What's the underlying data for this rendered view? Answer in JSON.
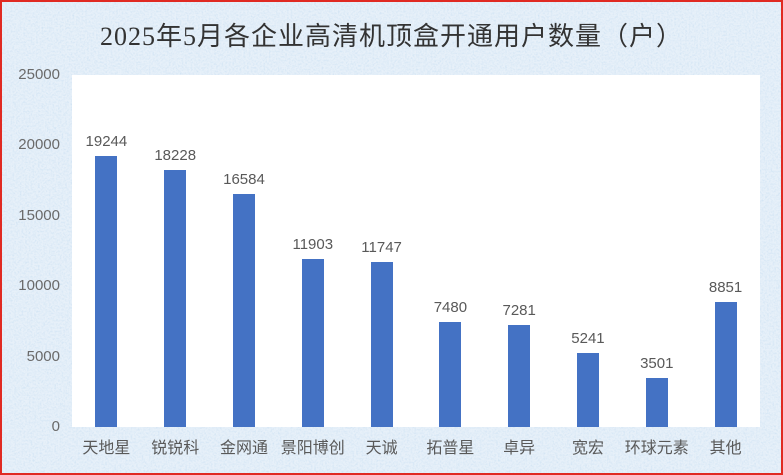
{
  "page": {
    "background_color": "#cfe2f3",
    "border_color": "#e02a22",
    "plot_background": "#ffffff"
  },
  "chart_data": {
    "type": "bar",
    "title": "2025年5月各企业高清机顶盒开通用户数量（户）",
    "categories": [
      "天地星",
      "锐锐科",
      "金网通",
      "景阳博创",
      "天诚",
      "拓普星",
      "卓异",
      "宽宏",
      "环球元素",
      "其他"
    ],
    "values": [
      19244,
      18228,
      16584,
      11903,
      11747,
      7480,
      7281,
      5241,
      3501,
      8851
    ],
    "data_labels": [
      "19244",
      "18228",
      "16584",
      "11903",
      "11747",
      "7480",
      "7281",
      "5241",
      "3501",
      "8851"
    ],
    "xlabel": "",
    "ylabel": "",
    "ylim": [
      0,
      25000
    ],
    "y_ticks": [
      0,
      5000,
      10000,
      15000,
      20000,
      25000
    ],
    "grid": false,
    "legend": "none",
    "bar_color": "#4472c4",
    "label_color": "#595959"
  }
}
